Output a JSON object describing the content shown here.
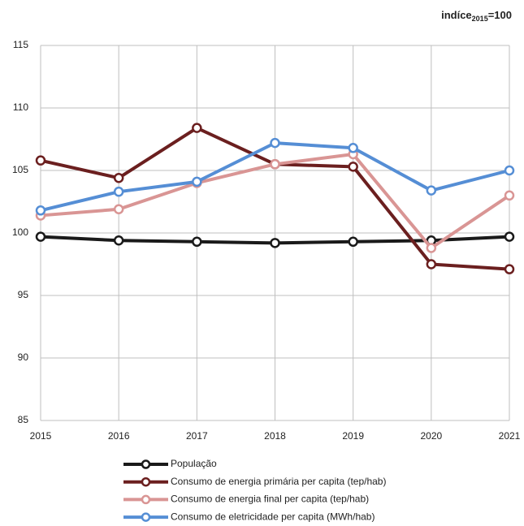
{
  "chart_data": {
    "type": "line",
    "title_parts": [
      "indíce",
      "2015",
      "=100"
    ],
    "x": [
      2015,
      2016,
      2017,
      2018,
      2019,
      2020,
      2021
    ],
    "xlim": [
      2015,
      2021
    ],
    "xticks": [
      2015,
      2016,
      2017,
      2018,
      2019,
      2020,
      2021
    ],
    "ylim": [
      85,
      115
    ],
    "yticks": [
      85,
      90,
      95,
      100,
      105,
      110,
      115
    ],
    "grid": true,
    "legend": "bottom",
    "series": [
      {
        "name": "População",
        "color": "#1a1a1a",
        "values": [
          99.7,
          99.4,
          99.3,
          99.2,
          99.3,
          99.4,
          99.7
        ]
      },
      {
        "name": "Consumo de energia primária per capita (tep/hab)",
        "color": "#6b1f1f",
        "values": [
          105.8,
          104.4,
          108.4,
          105.5,
          105.3,
          97.5,
          97.1
        ]
      },
      {
        "name": "Consumo de energia final per capita (tep/hab)",
        "color": "#d99594",
        "values": [
          101.4,
          101.9,
          104.0,
          105.5,
          106.3,
          98.8,
          103.0
        ]
      },
      {
        "name": "Consumo de eletricidade per capita (MWh/hab)",
        "color": "#558ed5",
        "values": [
          101.8,
          103.3,
          104.1,
          107.2,
          106.8,
          103.4,
          105.0
        ]
      }
    ]
  }
}
